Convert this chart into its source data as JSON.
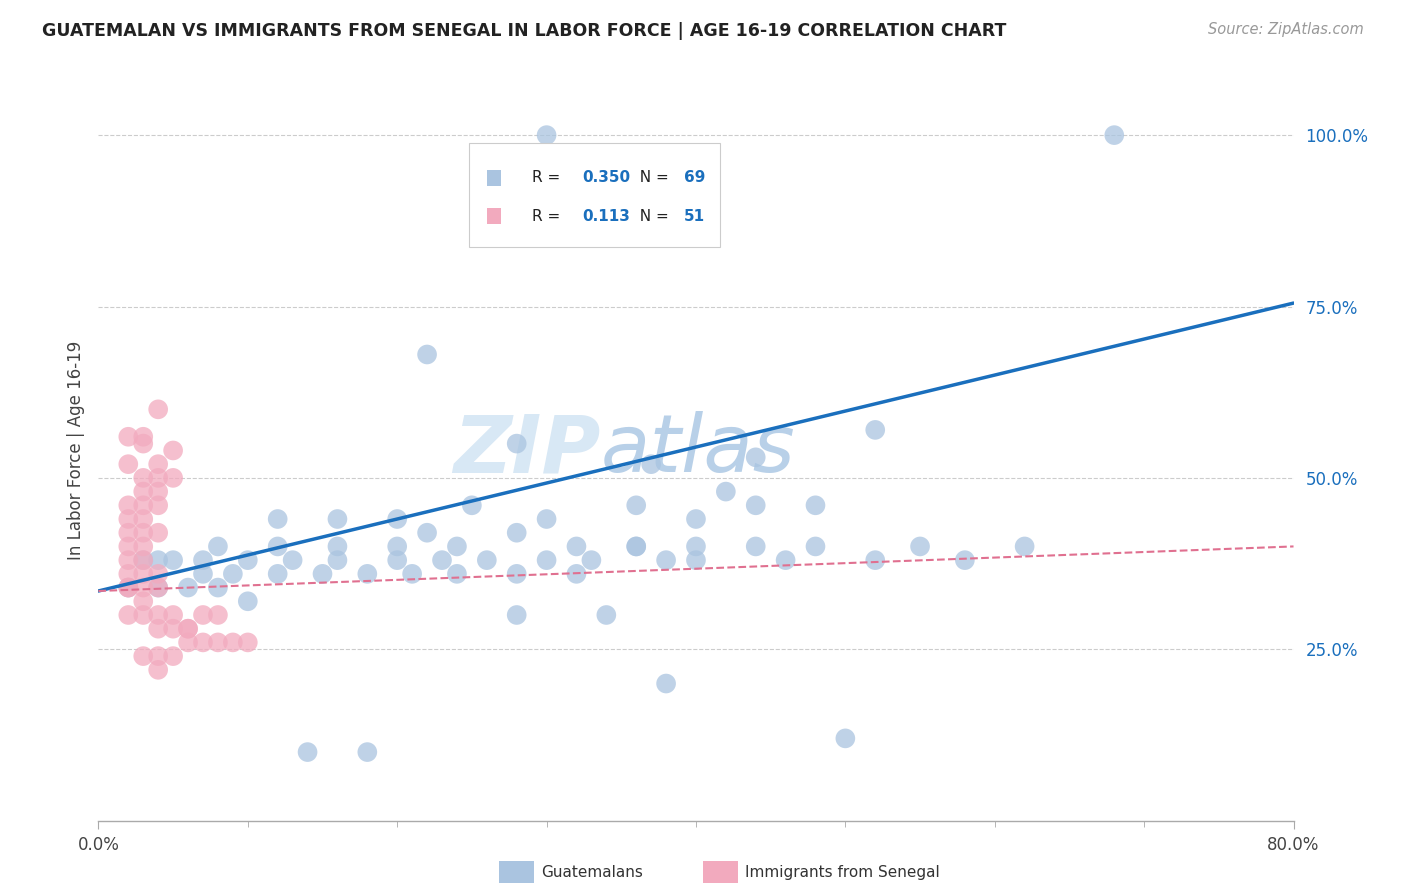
{
  "title": "GUATEMALAN VS IMMIGRANTS FROM SENEGAL IN LABOR FORCE | AGE 16-19 CORRELATION CHART",
  "source": "Source: ZipAtlas.com",
  "ylabel": "In Labor Force | Age 16-19",
  "xlim": [
    0.0,
    0.8
  ],
  "ylim": [
    0.0,
    1.08
  ],
  "ytick_positions": [
    0.25,
    0.5,
    0.75,
    1.0
  ],
  "ytick_labels": [
    "25.0%",
    "50.0%",
    "75.0%",
    "100.0%"
  ],
  "blue_R": "0.350",
  "blue_N": "69",
  "pink_R": "0.113",
  "pink_N": "51",
  "blue_color": "#aac4e0",
  "pink_color": "#f2aabe",
  "blue_line_color": "#1a6fbd",
  "pink_line_color": "#e07090",
  "grid_color": "#cccccc",
  "legend_label_blue": "Guatemalans",
  "legend_label_pink": "Immigrants from Senegal",
  "watermark_zip": "ZIP",
  "watermark_atlas": "atlas",
  "blue_scatter_x": [
    0.3,
    0.68,
    0.22,
    0.28,
    0.37,
    0.44,
    0.52,
    0.12,
    0.16,
    0.2,
    0.25,
    0.3,
    0.36,
    0.42,
    0.48,
    0.55,
    0.62,
    0.08,
    0.12,
    0.16,
    0.2,
    0.24,
    0.28,
    0.32,
    0.36,
    0.4,
    0.44,
    0.48,
    0.04,
    0.07,
    0.1,
    0.13,
    0.16,
    0.2,
    0.23,
    0.26,
    0.3,
    0.33,
    0.36,
    0.4,
    0.03,
    0.05,
    0.07,
    0.09,
    0.12,
    0.15,
    0.18,
    0.21,
    0.24,
    0.28,
    0.32,
    0.02,
    0.04,
    0.06,
    0.08,
    0.1,
    0.38,
    0.46,
    0.52,
    0.44,
    0.34,
    0.58,
    0.4,
    0.22,
    0.5,
    0.38,
    0.28,
    0.18,
    0.14
  ],
  "blue_scatter_y": [
    1.0,
    1.0,
    0.68,
    0.55,
    0.52,
    0.53,
    0.57,
    0.44,
    0.44,
    0.44,
    0.46,
    0.44,
    0.46,
    0.48,
    0.46,
    0.4,
    0.4,
    0.4,
    0.4,
    0.4,
    0.4,
    0.4,
    0.42,
    0.4,
    0.4,
    0.4,
    0.4,
    0.4,
    0.38,
    0.38,
    0.38,
    0.38,
    0.38,
    0.38,
    0.38,
    0.38,
    0.38,
    0.38,
    0.4,
    0.38,
    0.38,
    0.38,
    0.36,
    0.36,
    0.36,
    0.36,
    0.36,
    0.36,
    0.36,
    0.36,
    0.36,
    0.34,
    0.34,
    0.34,
    0.34,
    0.32,
    0.38,
    0.38,
    0.38,
    0.46,
    0.3,
    0.38,
    0.44,
    0.42,
    0.12,
    0.2,
    0.3,
    0.1,
    0.1
  ],
  "pink_scatter_x": [
    0.02,
    0.03,
    0.04,
    0.03,
    0.04,
    0.05,
    0.02,
    0.03,
    0.04,
    0.05,
    0.03,
    0.04,
    0.02,
    0.03,
    0.04,
    0.02,
    0.03,
    0.02,
    0.03,
    0.04,
    0.02,
    0.03,
    0.02,
    0.03,
    0.03,
    0.04,
    0.02,
    0.02,
    0.03,
    0.04,
    0.02,
    0.03,
    0.02,
    0.03,
    0.04,
    0.05,
    0.06,
    0.04,
    0.05,
    0.06,
    0.07,
    0.08,
    0.06,
    0.07,
    0.08,
    0.09,
    0.1,
    0.03,
    0.04,
    0.05,
    0.04
  ],
  "pink_scatter_y": [
    0.56,
    0.56,
    0.6,
    0.55,
    0.52,
    0.54,
    0.52,
    0.5,
    0.5,
    0.5,
    0.48,
    0.48,
    0.46,
    0.46,
    0.46,
    0.44,
    0.44,
    0.42,
    0.42,
    0.42,
    0.4,
    0.4,
    0.38,
    0.38,
    0.36,
    0.36,
    0.36,
    0.34,
    0.34,
    0.34,
    0.34,
    0.32,
    0.3,
    0.3,
    0.3,
    0.3,
    0.28,
    0.28,
    0.28,
    0.28,
    0.3,
    0.3,
    0.26,
    0.26,
    0.26,
    0.26,
    0.26,
    0.24,
    0.24,
    0.24,
    0.22
  ],
  "blue_line_x": [
    0.0,
    0.8
  ],
  "blue_line_y": [
    0.335,
    0.755
  ],
  "pink_line_x": [
    0.0,
    0.8
  ],
  "pink_line_y": [
    0.335,
    0.4
  ]
}
